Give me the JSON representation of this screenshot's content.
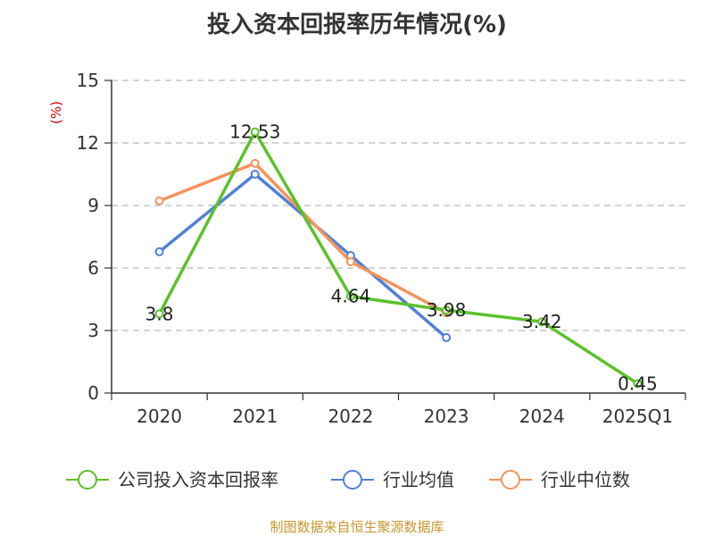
{
  "chart_data": {
    "type": "line",
    "title": "投入资本回报率历年情况(%)",
    "ylabel": "(%)",
    "categories": [
      "2020",
      "2021",
      "2022",
      "2023",
      "2024",
      "2025Q1"
    ],
    "ylim": [
      0,
      15
    ],
    "yticks": [
      "0",
      "3",
      "6",
      "9",
      "12",
      "15"
    ],
    "grid": true,
    "legend_position": "bottom",
    "series": [
      {
        "name": "公司投入资本回报率",
        "color": "#5bc22a",
        "values": [
          3.8,
          12.53,
          4.64,
          3.98,
          3.42,
          0.45
        ],
        "labels": [
          "3.8",
          "12.53",
          "4.64",
          "3.98",
          "3.42",
          "0.45"
        ]
      },
      {
        "name": "行业均值",
        "color": "#5080d8",
        "values": [
          6.78,
          10.5,
          6.6,
          2.66,
          null,
          null
        ]
      },
      {
        "name": "行业中位数",
        "color": "#f5935a",
        "values": [
          9.22,
          11.02,
          6.3,
          3.85,
          null,
          null
        ]
      }
    ]
  },
  "source": "制图数据来自恒生聚源数据库"
}
